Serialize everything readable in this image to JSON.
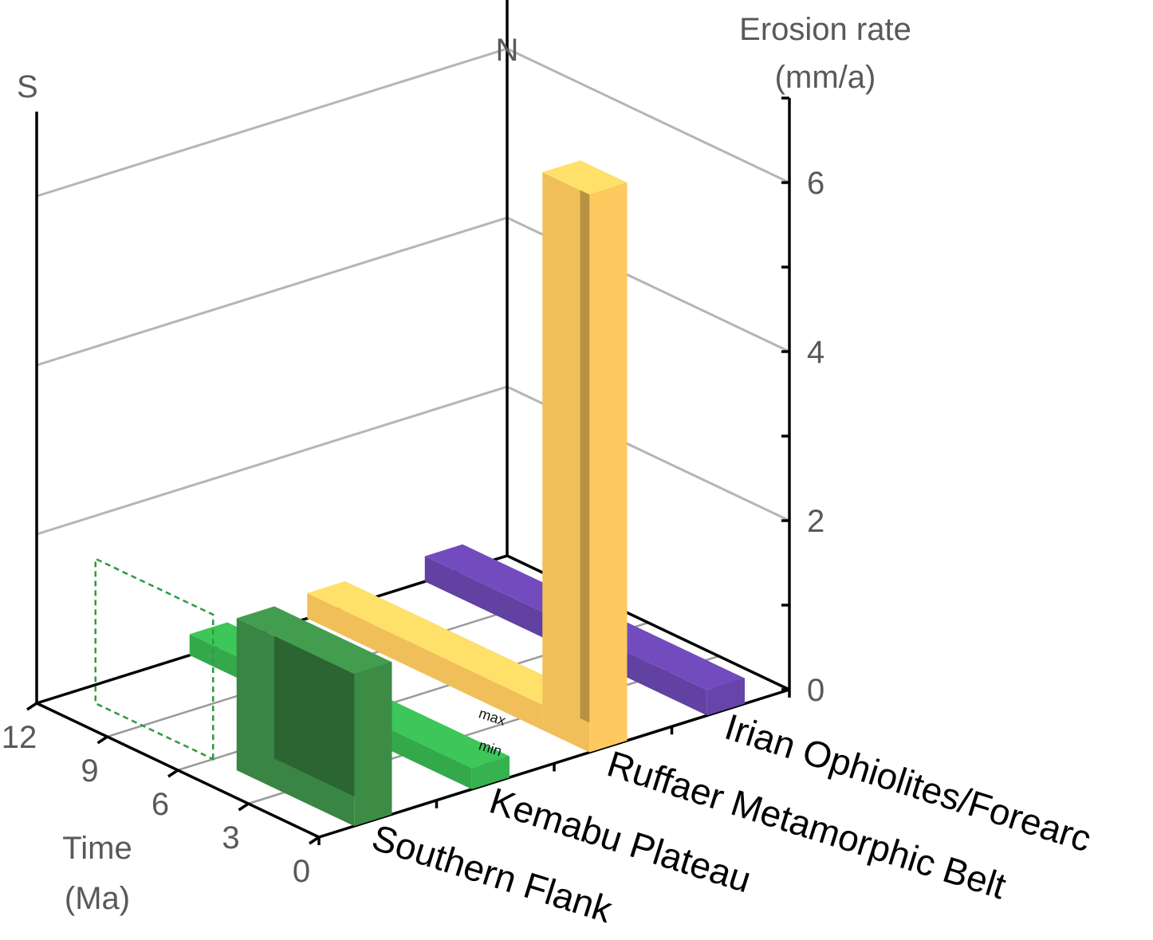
{
  "chart_data": {
    "type": "bar",
    "projection": "3d",
    "axes": {
      "z": {
        "label_lines": [
          "Erosion rate",
          "(mm/a)"
        ],
        "ticks": [
          0,
          2,
          4,
          6
        ],
        "range": [
          0,
          7
        ]
      },
      "time": {
        "label_lines": [
          "Time",
          "(Ma)"
        ],
        "ticks": [
          0,
          3,
          6,
          9,
          12
        ],
        "range": [
          0,
          12
        ]
      },
      "region": {
        "categories": [
          "Southern Flank",
          "Kemabu Plateau",
          "Ruffaer Metamorphic Belt",
          "Irian Ophiolites/Forearc"
        ]
      }
    },
    "orientation": {
      "south": "S",
      "north": "N"
    },
    "colors": {
      "gridline": "#b5b5b5",
      "axis": "#000000",
      "southern_flank": "#3c8c46",
      "kemabu_plateau": "#36b24f",
      "ruffaer_belt": "#fec95f",
      "irian_ophiolites": "#6644aa"
    },
    "bars": [
      {
        "category": "Southern Flank",
        "time_start": 0,
        "time_end": 5,
        "value": 1.8,
        "color": "#3c8c46",
        "dashed_outline": true
      },
      {
        "category": "Kemabu Plateau",
        "time_start": 0,
        "time_end": 12,
        "value": 0.25,
        "color": "#36b24f",
        "annotations": [
          "max",
          "min"
        ]
      },
      {
        "category": "Ruffaer Metamorphic Belt",
        "time_start": 0,
        "time_end": 2,
        "value": 6.6,
        "color": "#fec95f"
      },
      {
        "category": "Ruffaer Metamorphic Belt",
        "time_start": 2,
        "time_end": 12,
        "value": 0.3,
        "color": "#fec95f"
      },
      {
        "category": "Irian Ophiolites/Forearc",
        "time_start": 0,
        "time_end": 12,
        "value": 0.3,
        "color": "#6644aa"
      }
    ],
    "grid": true
  }
}
